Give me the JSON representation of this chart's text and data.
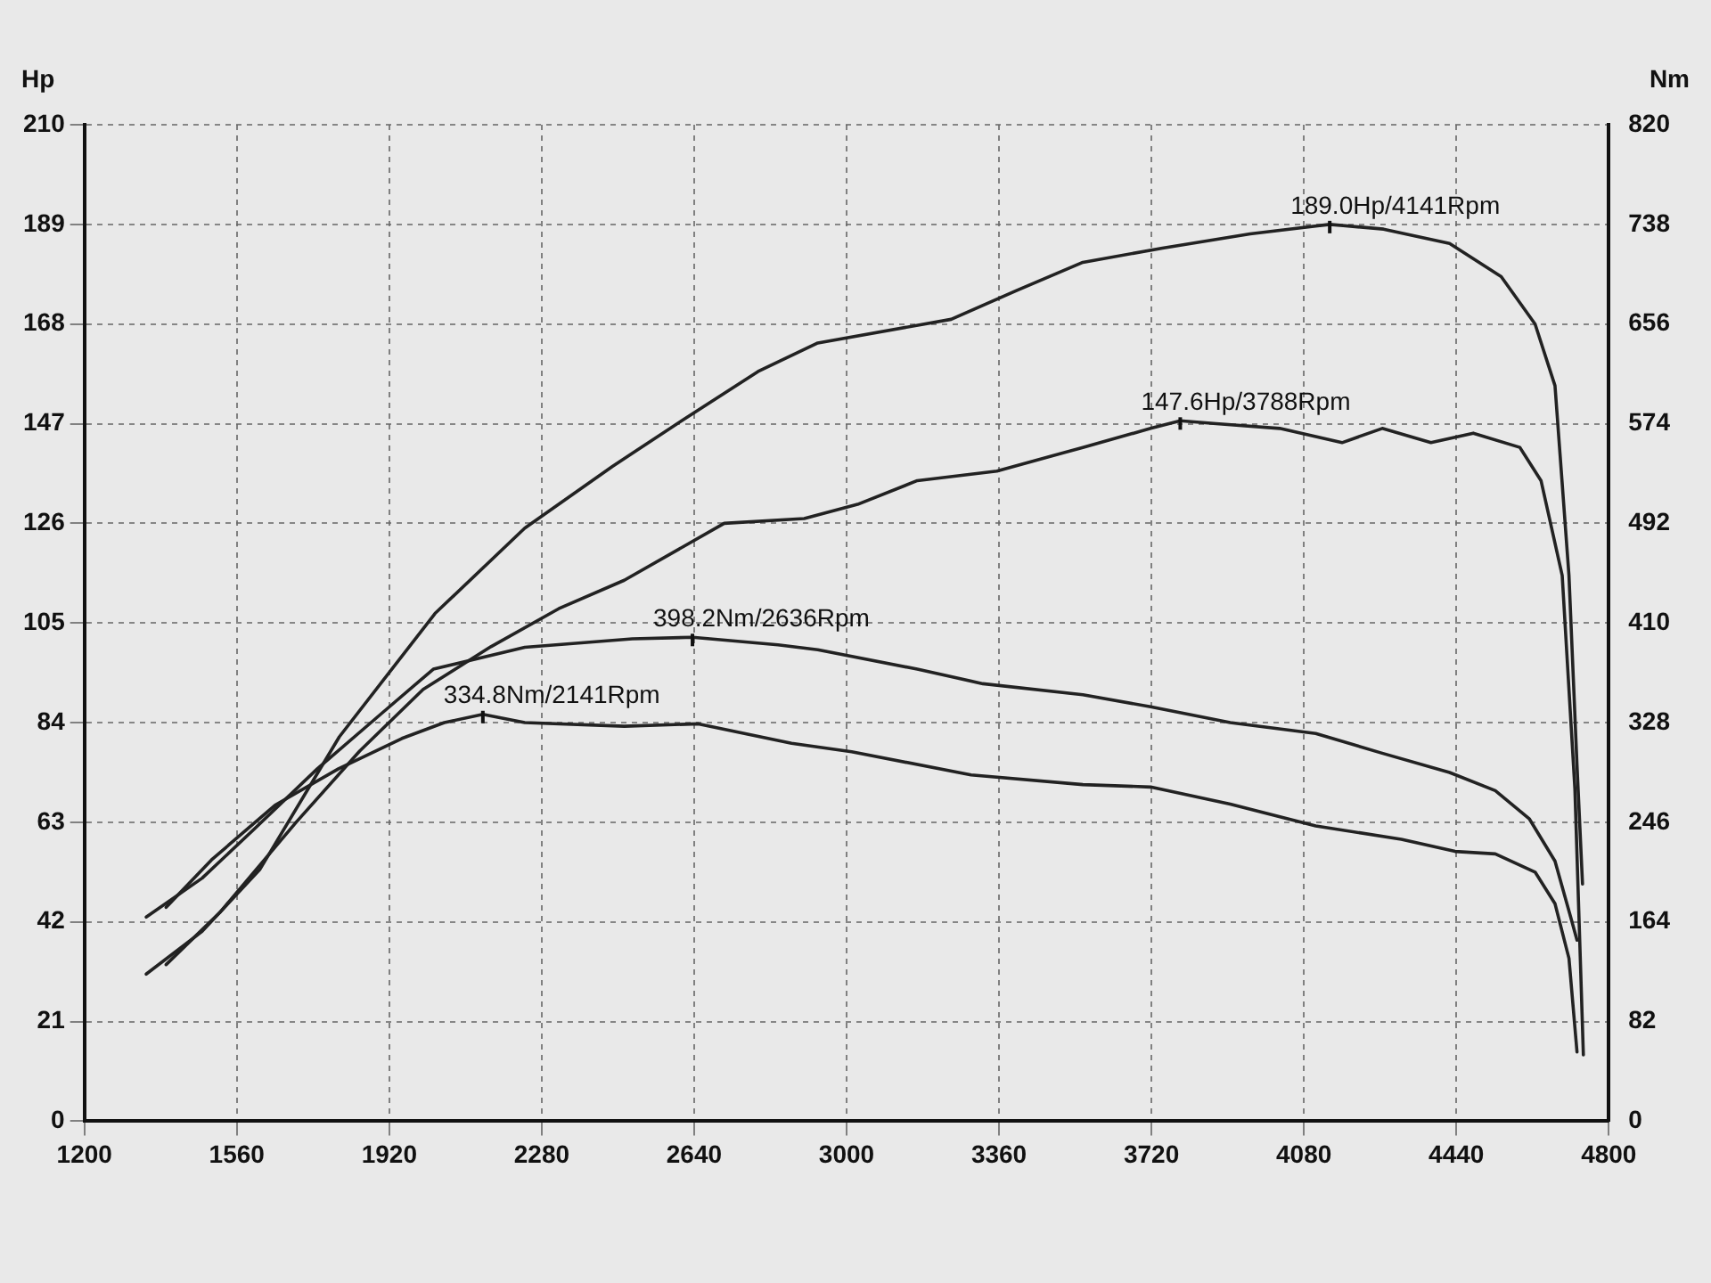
{
  "chart_data": {
    "type": "line",
    "ylabel": "Hp",
    "y2label": "Nm",
    "xlim": [
      1200,
      4800
    ],
    "xticks": [
      1200,
      1560,
      1920,
      2280,
      2640,
      3000,
      3360,
      3720,
      4080,
      4440,
      4800
    ],
    "ylim": [
      0,
      210
    ],
    "yticks": [
      0,
      21,
      42,
      63,
      84,
      105,
      126,
      147,
      168,
      189,
      210
    ],
    "y2lim": [
      0,
      820
    ],
    "y2ticks": [
      0,
      82,
      164,
      246,
      328,
      410,
      492,
      574,
      656,
      738,
      820
    ],
    "grid": true,
    "legend": false,
    "marker": "none",
    "line_style": "solid",
    "series": [
      {
        "color": "#222222",
        "x": [
          1346,
          1478,
          1614,
          1802,
          2028,
          2240,
          2447,
          2617,
          2791,
          2932,
          3247,
          3400,
          3558,
          3746,
          3953,
          4141,
          4268,
          4424,
          4546,
          4626,
          4673,
          4706,
          4725,
          4738
        ],
        "values": [
          31,
          40,
          53,
          81,
          107,
          125,
          138,
          148,
          158,
          164,
          169,
          175,
          181,
          184,
          187,
          189.0,
          188,
          185,
          178,
          168,
          155,
          115,
          75,
          50
        ],
        "value_labels": [
          null,
          null,
          null,
          null,
          null,
          null,
          null,
          null,
          null,
          null,
          null,
          null,
          null,
          null,
          null,
          "189.0Hp/4141Rpm",
          null,
          null,
          null,
          null,
          null,
          null,
          null,
          null
        ]
      },
      {
        "color": "#222222",
        "x": [
          1393,
          1520,
          1700,
          1850,
          2000,
          2160,
          2320,
          2475,
          2711,
          2900,
          3026,
          3167,
          3355,
          3558,
          3718,
          3788,
          3873,
          4023,
          4170,
          4265,
          4380,
          4480,
          4590,
          4640,
          4690,
          4720,
          4740
        ],
        "values": [
          33,
          44,
          63,
          78,
          91,
          100,
          108,
          114,
          126,
          127,
          130,
          135,
          137,
          142,
          146,
          147.6,
          147,
          146,
          143,
          146,
          143,
          145,
          142,
          135,
          115,
          70,
          14
        ],
        "value_labels": [
          null,
          null,
          null,
          null,
          null,
          null,
          null,
          null,
          null,
          null,
          null,
          null,
          null,
          null,
          null,
          "147.6Hp/3788Rpm",
          null,
          null,
          null,
          null,
          null,
          null,
          null,
          null,
          null,
          null,
          null
        ]
      },
      {
        "color": "#222222",
        "axis": "y2",
        "x": [
          1346,
          1478,
          1600,
          1750,
          1900,
          2024,
          2240,
          2494,
          2636,
          2838,
          2932,
          3167,
          3322,
          3558,
          3718,
          3906,
          4108,
          4263,
          4424,
          4532,
          4612,
          4673,
          4710,
          4725
        ],
        "values": [
          168,
          200,
          240,
          290,
          335,
          372,
          390,
          397,
          398.2,
          392,
          388,
          372,
          360,
          351,
          341,
          328,
          319,
          303,
          287,
          272,
          249,
          214,
          168,
          149
        ],
        "value_labels": [
          null,
          null,
          null,
          null,
          null,
          null,
          null,
          null,
          "398.2Nm/2636Rpm",
          null,
          null,
          null,
          null,
          null,
          null,
          null,
          null,
          null,
          null,
          null,
          null,
          null,
          null,
          null
        ]
      },
      {
        "color": "#222222",
        "axis": "y2",
        "x": [
          1393,
          1500,
          1650,
          1800,
          1950,
          2050,
          2141,
          2240,
          2475,
          2650,
          2870,
          3012,
          3294,
          3558,
          3718,
          3906,
          4108,
          4310,
          4437,
          4532,
          4626,
          4673,
          4706,
          4725
        ],
        "values": [
          176,
          215,
          260,
          290,
          315,
          328,
          334.8,
          328,
          325,
          327,
          311,
          304,
          285,
          277,
          275,
          261,
          243,
          232,
          222,
          220,
          205,
          179,
          134,
          57
        ],
        "value_labels": [
          null,
          null,
          null,
          null,
          null,
          null,
          "334.8Nm/2141Rpm",
          null,
          null,
          null,
          null,
          null,
          null,
          null,
          null,
          null,
          null,
          null,
          null,
          null,
          null,
          null,
          null,
          null
        ]
      }
    ]
  }
}
